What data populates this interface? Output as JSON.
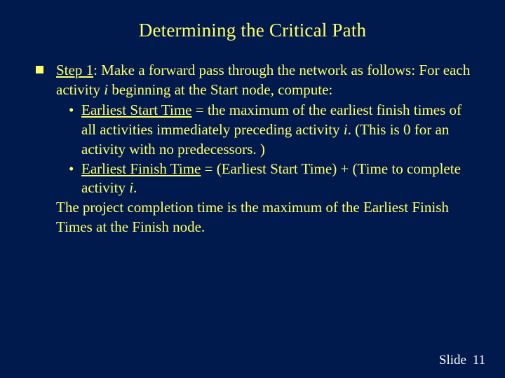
{
  "colors": {
    "background": "#001a4d",
    "text": "#ffff66",
    "footer_text": "#ffffff",
    "bullet_fill": "#ffff66"
  },
  "typography": {
    "family": "Times New Roman",
    "title_fontsize_pt": 20,
    "body_fontsize_pt": 16,
    "footer_fontsize_pt": 14
  },
  "slide": {
    "title": "Determining the Critical Path",
    "step_label": "Step 1",
    "intro_a": ":  Make a forward pass through the network as follows:  For each activity ",
    "intro_var": "i",
    "intro_b": " beginning at the Start  node, compute:",
    "sub_bullet": "•",
    "item1_term": "Earliest Start Time",
    "item1_mid_a": " = the maximum of the earliest finish times of all activities immediately preceding activity ",
    "item1_var": "i",
    "item1_tail": ". (This is 0 for an activity with no predecessors. )",
    "item2_term": "Earliest Finish Time",
    "item2_mid": " = (Earliest Start Time) + (Time to complete activity ",
    "item2_var": "i",
    "item2_tail": ".",
    "closing": "The project completion time is the maximum of the Earliest Finish Times at the Finish node."
  },
  "footer": {
    "label": "Slide",
    "number": "11"
  }
}
